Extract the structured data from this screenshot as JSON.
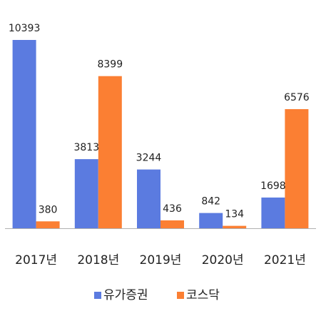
{
  "chart_data": {
    "type": "bar",
    "categories": [
      "2017년",
      "2018년",
      "2019년",
      "2020년",
      "2021년"
    ],
    "series": [
      {
        "name": "유가증권",
        "color": "#5b7be0",
        "values": [
          10393,
          3813,
          3244,
          842,
          1698
        ]
      },
      {
        "name": "코스닥",
        "color": "#fb7f33",
        "values": [
          380,
          8399,
          436,
          134,
          6576
        ]
      }
    ],
    "ylim": [
      0,
      10393
    ],
    "grid": false,
    "legend_position": "bottom-center",
    "axis_color": "#b0b0b0"
  }
}
